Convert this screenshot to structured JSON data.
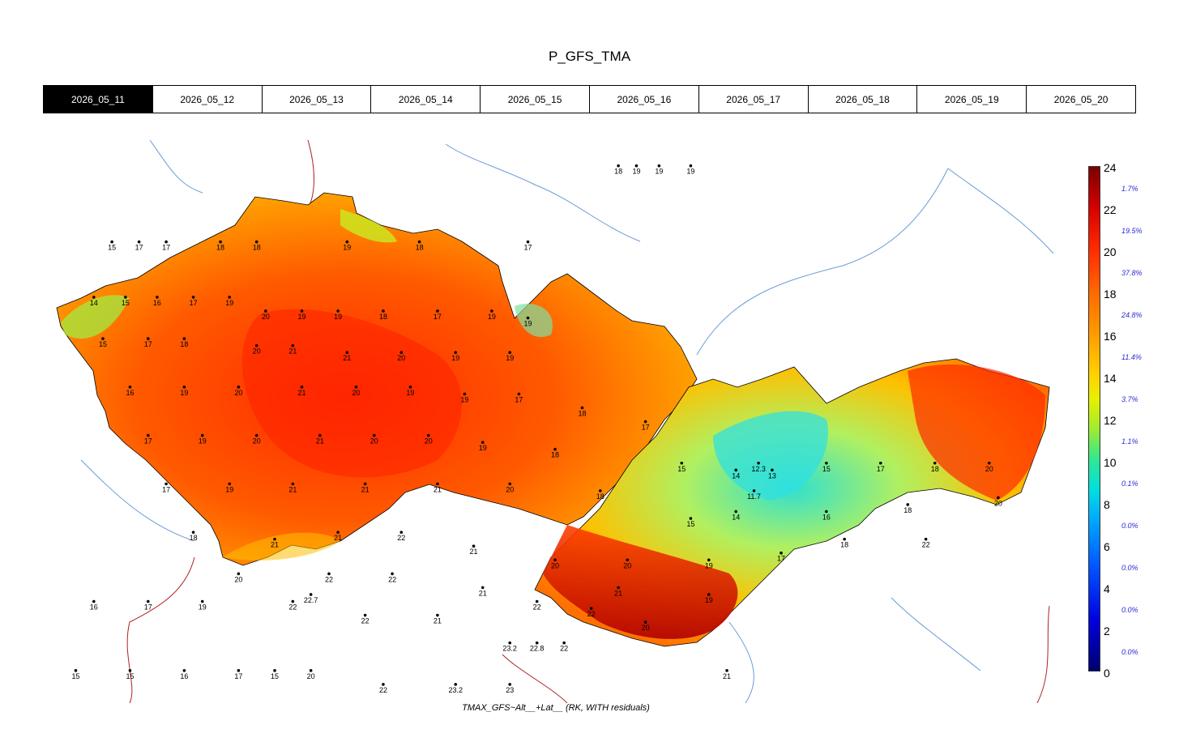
{
  "title": "P_GFS_TMA",
  "tabs": [
    "2026_05_11",
    "2026_05_12",
    "2026_05_13",
    "2026_05_14",
    "2026_05_15",
    "2026_05_16",
    "2026_05_17",
    "2026_05_18",
    "2026_05_19",
    "2026_05_20"
  ],
  "active_tab": 0,
  "caption": "TMAX_GFS~Alt__+Lat__ (RK, WITH residuals)",
  "legend": {
    "ticks": [
      "24",
      "22",
      "20",
      "18",
      "16",
      "14",
      "12",
      "10",
      "8",
      "6",
      "4",
      "2",
      "0"
    ],
    "percentages": [
      "1.7%",
      "19.5%",
      "37.8%",
      "24.8%",
      "11.4%",
      "3.7%",
      "1.1%",
      "0.1%",
      "0.0%",
      "0.0%",
      "0.0%",
      "0.0%"
    ]
  },
  "colors": {
    "hot": "#b40000",
    "warm": "#ff4000",
    "mild": "#ffa000",
    "cool": "#40e0c0",
    "border": "#ffffff"
  },
  "stations": [
    {
      "v": "18",
      "x": 18.0,
      "y": 51.05
    },
    {
      "v": "19",
      "x": 18.2,
      "y": 51.05
    },
    {
      "v": "19",
      "x": 18.45,
      "y": 51.05
    },
    {
      "v": "19",
      "x": 18.8,
      "y": 51.05
    },
    {
      "v": "15",
      "x": 12.4,
      "y": 50.5
    },
    {
      "v": "17",
      "x": 12.7,
      "y": 50.5
    },
    {
      "v": "17",
      "x": 13.0,
      "y": 50.5
    },
    {
      "v": "18",
      "x": 13.6,
      "y": 50.5
    },
    {
      "v": "18",
      "x": 14.0,
      "y": 50.5
    },
    {
      "v": "19",
      "x": 15.0,
      "y": 50.5
    },
    {
      "v": "18",
      "x": 15.8,
      "y": 50.5
    },
    {
      "v": "17",
      "x": 17.0,
      "y": 50.5
    },
    {
      "v": "14",
      "x": 12.2,
      "y": 50.1
    },
    {
      "v": "15",
      "x": 12.55,
      "y": 50.1
    },
    {
      "v": "16",
      "x": 12.9,
      "y": 50.1
    },
    {
      "v": "17",
      "x": 13.3,
      "y": 50.1
    },
    {
      "v": "19",
      "x": 13.7,
      "y": 50.1
    },
    {
      "v": "20",
      "x": 14.1,
      "y": 50.0
    },
    {
      "v": "19",
      "x": 14.5,
      "y": 50.0
    },
    {
      "v": "19",
      "x": 14.9,
      "y": 50.0
    },
    {
      "v": "18",
      "x": 15.4,
      "y": 50.0
    },
    {
      "v": "17",
      "x": 16.0,
      "y": 50.0
    },
    {
      "v": "19",
      "x": 16.6,
      "y": 50.0
    },
    {
      "v": "19",
      "x": 17.0,
      "y": 49.95
    },
    {
      "v": "15",
      "x": 12.3,
      "y": 49.8
    },
    {
      "v": "17",
      "x": 12.8,
      "y": 49.8
    },
    {
      "v": "18",
      "x": 13.2,
      "y": 49.8
    },
    {
      "v": "20",
      "x": 14.0,
      "y": 49.75
    },
    {
      "v": "21",
      "x": 14.4,
      "y": 49.75
    },
    {
      "v": "21",
      "x": 15.0,
      "y": 49.7
    },
    {
      "v": "20",
      "x": 15.6,
      "y": 49.7
    },
    {
      "v": "19",
      "x": 16.2,
      "y": 49.7
    },
    {
      "v": "19",
      "x": 16.8,
      "y": 49.7
    },
    {
      "v": "16",
      "x": 12.6,
      "y": 49.45
    },
    {
      "v": "19",
      "x": 13.2,
      "y": 49.45
    },
    {
      "v": "20",
      "x": 13.8,
      "y": 49.45
    },
    {
      "v": "21",
      "x": 14.5,
      "y": 49.45
    },
    {
      "v": "20",
      "x": 15.1,
      "y": 49.45
    },
    {
      "v": "19",
      "x": 15.7,
      "y": 49.45
    },
    {
      "v": "19",
      "x": 16.3,
      "y": 49.4
    },
    {
      "v": "17",
      "x": 16.9,
      "y": 49.4
    },
    {
      "v": "18",
      "x": 17.6,
      "y": 49.3
    },
    {
      "v": "17",
      "x": 18.3,
      "y": 49.2
    },
    {
      "v": "17",
      "x": 12.8,
      "y": 49.1
    },
    {
      "v": "19",
      "x": 13.4,
      "y": 49.1
    },
    {
      "v": "20",
      "x": 14.0,
      "y": 49.1
    },
    {
      "v": "21",
      "x": 14.7,
      "y": 49.1
    },
    {
      "v": "20",
      "x": 15.3,
      "y": 49.1
    },
    {
      "v": "20",
      "x": 15.9,
      "y": 49.1
    },
    {
      "v": "19",
      "x": 16.5,
      "y": 49.05
    },
    {
      "v": "18",
      "x": 17.3,
      "y": 49.0
    },
    {
      "v": "15",
      "x": 18.7,
      "y": 48.9
    },
    {
      "v": "14",
      "x": 19.3,
      "y": 48.85
    },
    {
      "v": "13",
      "x": 19.7,
      "y": 48.85
    },
    {
      "v": "15",
      "x": 20.3,
      "y": 48.9
    },
    {
      "v": "17",
      "x": 20.9,
      "y": 48.9
    },
    {
      "v": "18",
      "x": 21.5,
      "y": 48.9
    },
    {
      "v": "20",
      "x": 22.1,
      "y": 48.9
    },
    {
      "v": "17",
      "x": 13.0,
      "y": 48.75
    },
    {
      "v": "19",
      "x": 13.7,
      "y": 48.75
    },
    {
      "v": "21",
      "x": 14.4,
      "y": 48.75
    },
    {
      "v": "21",
      "x": 15.2,
      "y": 48.75
    },
    {
      "v": "21",
      "x": 16.0,
      "y": 48.75
    },
    {
      "v": "20",
      "x": 16.8,
      "y": 48.75
    },
    {
      "v": "18",
      "x": 17.8,
      "y": 48.7
    },
    {
      "v": "12.3",
      "x": 19.55,
      "y": 48.9
    },
    {
      "v": "11.7",
      "x": 19.5,
      "y": 48.7
    },
    {
      "v": "15",
      "x": 18.8,
      "y": 48.5
    },
    {
      "v": "14",
      "x": 19.3,
      "y": 48.55
    },
    {
      "v": "16",
      "x": 20.3,
      "y": 48.55
    },
    {
      "v": "18",
      "x": 21.2,
      "y": 48.6
    },
    {
      "v": "20",
      "x": 22.2,
      "y": 48.65
    },
    {
      "v": "18",
      "x": 13.3,
      "y": 48.4
    },
    {
      "v": "21",
      "x": 14.2,
      "y": 48.35
    },
    {
      "v": "21",
      "x": 14.9,
      "y": 48.4
    },
    {
      "v": "22",
      "x": 15.6,
      "y": 48.4
    },
    {
      "v": "21",
      "x": 16.4,
      "y": 48.3
    },
    {
      "v": "20",
      "x": 17.3,
      "y": 48.2
    },
    {
      "v": "20",
      "x": 18.1,
      "y": 48.2
    },
    {
      "v": "19",
      "x": 19.0,
      "y": 48.2
    },
    {
      "v": "17",
      "x": 19.8,
      "y": 48.25
    },
    {
      "v": "18",
      "x": 20.5,
      "y": 48.35
    },
    {
      "v": "22",
      "x": 21.4,
      "y": 48.35
    },
    {
      "v": "20",
      "x": 13.8,
      "y": 48.1
    },
    {
      "v": "22",
      "x": 14.8,
      "y": 48.1
    },
    {
      "v": "22",
      "x": 15.5,
      "y": 48.1
    },
    {
      "v": "21",
      "x": 16.5,
      "y": 48.0
    },
    {
      "v": "22",
      "x": 17.1,
      "y": 47.9
    },
    {
      "v": "22",
      "x": 17.7,
      "y": 47.85
    },
    {
      "v": "21",
      "x": 18.0,
      "y": 48.0
    },
    {
      "v": "20",
      "x": 18.3,
      "y": 47.75
    },
    {
      "v": "19",
      "x": 19.0,
      "y": 47.95
    },
    {
      "v": "16",
      "x": 12.2,
      "y": 47.9
    },
    {
      "v": "17",
      "x": 12.8,
      "y": 47.9
    },
    {
      "v": "19",
      "x": 13.4,
      "y": 47.9
    },
    {
      "v": "22",
      "x": 14.4,
      "y": 47.9
    },
    {
      "v": "22.7",
      "x": 14.6,
      "y": 47.95
    },
    {
      "v": "22",
      "x": 15.2,
      "y": 47.8
    },
    {
      "v": "21",
      "x": 16.0,
      "y": 47.8
    },
    {
      "v": "23.2",
      "x": 16.8,
      "y": 47.6
    },
    {
      "v": "22.8",
      "x": 17.1,
      "y": 47.6
    },
    {
      "v": "22",
      "x": 17.4,
      "y": 47.6
    },
    {
      "v": "15",
      "x": 12.0,
      "y": 47.4
    },
    {
      "v": "15",
      "x": 12.6,
      "y": 47.4
    },
    {
      "v": "16",
      "x": 13.2,
      "y": 47.4
    },
    {
      "v": "17",
      "x": 13.8,
      "y": 47.4
    },
    {
      "v": "15",
      "x": 14.2,
      "y": 47.4
    },
    {
      "v": "20",
      "x": 14.6,
      "y": 47.4
    },
    {
      "v": "22",
      "x": 15.4,
      "y": 47.3
    },
    {
      "v": "23.2",
      "x": 16.2,
      "y": 47.3
    },
    {
      "v": "23",
      "x": 16.8,
      "y": 47.3
    },
    {
      "v": "21",
      "x": 19.2,
      "y": 47.4
    }
  ]
}
